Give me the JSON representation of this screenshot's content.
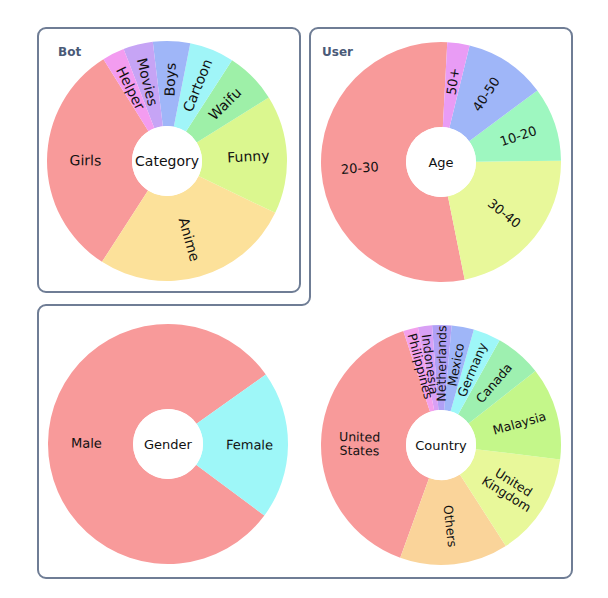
{
  "panels": [
    "Bot",
    "User"
  ],
  "chart_data": [
    {
      "type": "pie",
      "title": "Category",
      "categories": [
        "Girls",
        "Anime",
        "Funny",
        "Waifu",
        "Cartoon",
        "Boys",
        "Movies",
        "Helper"
      ],
      "values": [
        32,
        27,
        16,
        7,
        6,
        5,
        4,
        3
      ],
      "colors": [
        "#f89a9a",
        "#fce19a",
        "#dbf78f",
        "#9ef0a8",
        "#a0f5f8",
        "#9fb6f8",
        "#c6a4f5",
        "#f39cf0"
      ]
    },
    {
      "type": "pie",
      "title": "Age",
      "categories": [
        "20-30",
        "30-40",
        "10-20",
        "40-50",
        "50+"
      ],
      "values": [
        54,
        22,
        10,
        11,
        3
      ],
      "colors": [
        "#f89a9a",
        "#e8f89a",
        "#9ef7c0",
        "#9fb6f8",
        "#e99cf5"
      ]
    },
    {
      "type": "pie",
      "title": "Gender",
      "categories": [
        "Male",
        "Female"
      ],
      "values": [
        80,
        20
      ],
      "colors": [
        "#f89a9a",
        "#9ef7f8"
      ]
    },
    {
      "type": "pie",
      "title": "Country",
      "categories": [
        "United\nStates",
        "Others",
        "United\nKingdom",
        "Malaysia",
        "Canada",
        "Germany",
        "Mexico",
        "Netherlands",
        "Indonesia",
        "Philippines"
      ],
      "values": [
        39.4,
        14.6,
        14.0,
        12.5,
        6.3,
        3.7,
        3.0,
        2.6,
        1.9,
        2.0
      ],
      "colors": [
        "#f89a9a",
        "#fad49a",
        "#e8f89a",
        "#c4f78a",
        "#9ef0b0",
        "#9ef7f8",
        "#9fb6f8",
        "#b0a0f5",
        "#d8a0f5",
        "#f3a0ec"
      ]
    }
  ]
}
